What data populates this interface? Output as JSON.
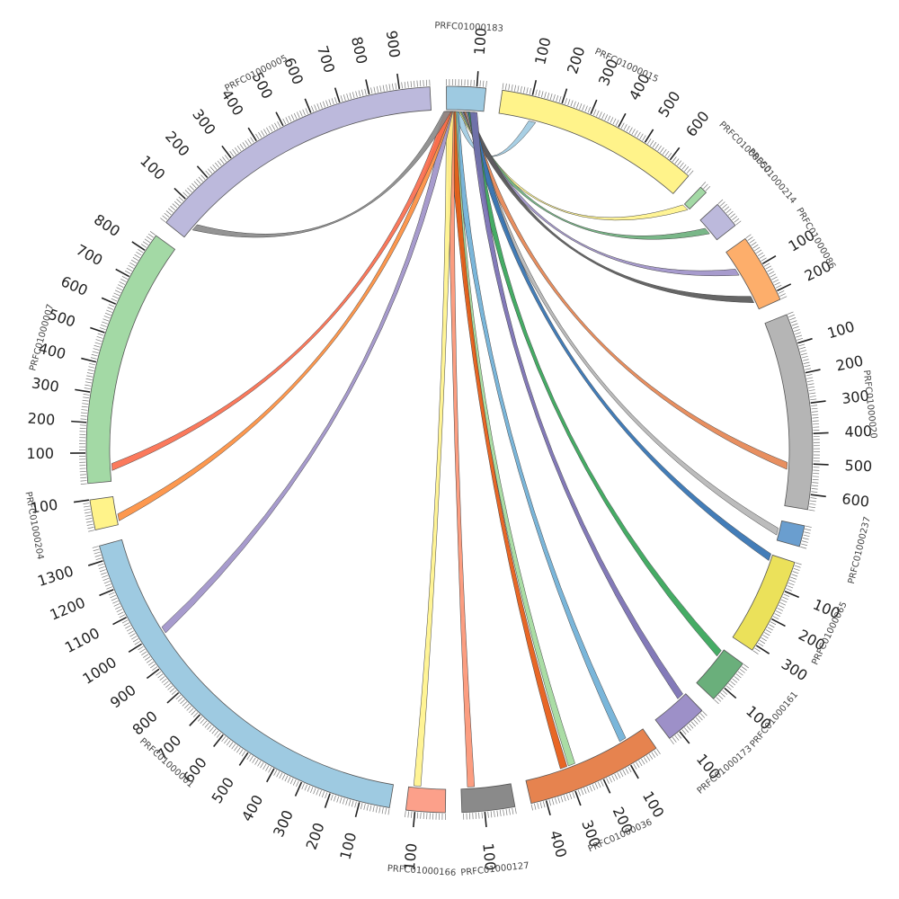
{
  "chart_data": {
    "type": "chord",
    "tick_step": 100,
    "segments": [
      {
        "name": "PRFC01000183",
        "length": 130,
        "color": "#9ecae1",
        "ticks": [
          "100"
        ]
      },
      {
        "name": "PRFC01000015",
        "length": 680,
        "color": "#fff38a",
        "ticks": [
          "100",
          "200",
          "300",
          "400",
          "500",
          "600"
        ]
      },
      {
        "name": "PRFC01000050",
        "length": 25,
        "color": "#a3d9a5",
        "ticks": []
      },
      {
        "name": "PRFC01000214",
        "length": 90,
        "color": "#bcb9dc",
        "ticks": []
      },
      {
        "name": "PRFC01000086",
        "length": 230,
        "color": "#fdae6b",
        "ticks": [
          "100",
          "200"
        ]
      },
      {
        "name": "PRFC01000020",
        "length": 650,
        "color": "#b5b5b5",
        "ticks": [
          "100",
          "200",
          "300",
          "400",
          "500",
          "600"
        ]
      },
      {
        "name": "PRFC01000237",
        "length": 70,
        "color": "#6a9ecf",
        "ticks": []
      },
      {
        "name": "PRFC01000065",
        "length": 320,
        "color": "#ebe15a",
        "ticks": [
          "100",
          "200",
          "300"
        ]
      },
      {
        "name": "PRFC01000161",
        "length": 150,
        "color": "#6aaf7b",
        "ticks": [
          "100"
        ]
      },
      {
        "name": "PRFC01000173",
        "length": 140,
        "color": "#9d90c8",
        "ticks": [
          "100"
        ]
      },
      {
        "name": "PRFC01000036",
        "length": 450,
        "color": "#e6834f",
        "ticks": [
          "100",
          "200",
          "300",
          "400"
        ]
      },
      {
        "name": "PRFC01000127",
        "length": 175,
        "color": "#8a8a8a",
        "ticks": [
          "100"
        ]
      },
      {
        "name": "PRFC01000166",
        "length": 130,
        "color": "#fca08a",
        "ticks": [
          "100"
        ]
      },
      {
        "name": "PRFC01000001",
        "length": 1350,
        "color": "#9ecae1",
        "ticks": [
          "100",
          "200",
          "300",
          "400",
          "500",
          "600",
          "700",
          "800",
          "900",
          "1000",
          "1100",
          "1200",
          "1300"
        ]
      },
      {
        "name": "PRFC01000204",
        "length": 100,
        "color": "#fff38a",
        "ticks": [
          "100"
        ]
      },
      {
        "name": "PRFC01000007",
        "length": 860,
        "color": "#a3d9a5",
        "ticks": [
          "100",
          "200",
          "300",
          "400",
          "500",
          "600",
          "700",
          "800"
        ]
      },
      {
        "name": "PRFC01000005",
        "length": 1000,
        "color": "#bcb9dc",
        "ticks": [
          "100",
          "200",
          "300",
          "400",
          "500",
          "600",
          "700",
          "800",
          "900"
        ]
      }
    ],
    "links": [
      {
        "from": "PRFC01000183",
        "from_pos": 40,
        "to": "PRFC01000015",
        "to_pos": 120,
        "color": "#9ecae1"
      },
      {
        "from": "PRFC01000183",
        "from_pos": 55,
        "to": "PRFC01000050",
        "to_pos": 10,
        "color": "#fff38a"
      },
      {
        "from": "PRFC01000183",
        "from_pos": 60,
        "to": "PRFC01000214",
        "to_pos": 45,
        "color": "#6aaf7b"
      },
      {
        "from": "PRFC01000183",
        "from_pos": 65,
        "to": "PRFC01000086",
        "to_pos": 80,
        "color": "#9d90c8"
      },
      {
        "from": "PRFC01000183",
        "from_pos": 70,
        "to": "PRFC01000086",
        "to_pos": 190,
        "color": "#555555"
      },
      {
        "from": "PRFC01000183",
        "from_pos": 75,
        "to": "PRFC01000020",
        "to_pos": 510,
        "color": "#e6834f"
      },
      {
        "from": "PRFC01000183",
        "from_pos": 80,
        "to": "PRFC01000237",
        "to_pos": 40,
        "color": "#b5b5b5"
      },
      {
        "from": "PRFC01000183",
        "from_pos": 85,
        "to": "PRFC01000065",
        "to_pos": 10,
        "color": "#2f6fb0"
      },
      {
        "from": "PRFC01000183",
        "from_pos": 90,
        "to": "PRFC01000161",
        "to_pos": 20,
        "color": "#31a354"
      },
      {
        "from": "PRFC01000183",
        "from_pos": 95,
        "to": "PRFC01000173",
        "to_pos": 20,
        "color": "#756bb1"
      },
      {
        "from": "PRFC01000183",
        "from_pos": 30,
        "to": "PRFC01000036",
        "to_pos": 80,
        "color": "#6baed6"
      },
      {
        "from": "PRFC01000183",
        "from_pos": 25,
        "to": "PRFC01000036",
        "to_pos": 280,
        "color": "#a1d99b"
      },
      {
        "from": "PRFC01000183",
        "from_pos": 20,
        "to": "PRFC01000036",
        "to_pos": 310,
        "color": "#e6550d"
      },
      {
        "from": "PRFC01000183",
        "from_pos": 15,
        "to": "PRFC01000127",
        "to_pos": 140,
        "color": "#fc9272"
      },
      {
        "from": "PRFC01000183",
        "from_pos": 12,
        "to": "PRFC01000166",
        "to_pos": 100,
        "color": "#fff38a"
      },
      {
        "from": "PRFC01000183",
        "from_pos": 10,
        "to": "PRFC01000001",
        "to_pos": 1000,
        "color": "#9d90c8"
      },
      {
        "from": "PRFC01000183",
        "from_pos": 8,
        "to": "PRFC01000204",
        "to_pos": 25,
        "color": "#fd8d3c"
      },
      {
        "from": "PRFC01000183",
        "from_pos": 5,
        "to": "PRFC01000007",
        "to_pos": 50,
        "color": "#fb6a4a"
      },
      {
        "from": "PRFC01000183",
        "from_pos": 3,
        "to": "PRFC01000005",
        "to_pos": 50,
        "color": "#888888"
      }
    ]
  }
}
